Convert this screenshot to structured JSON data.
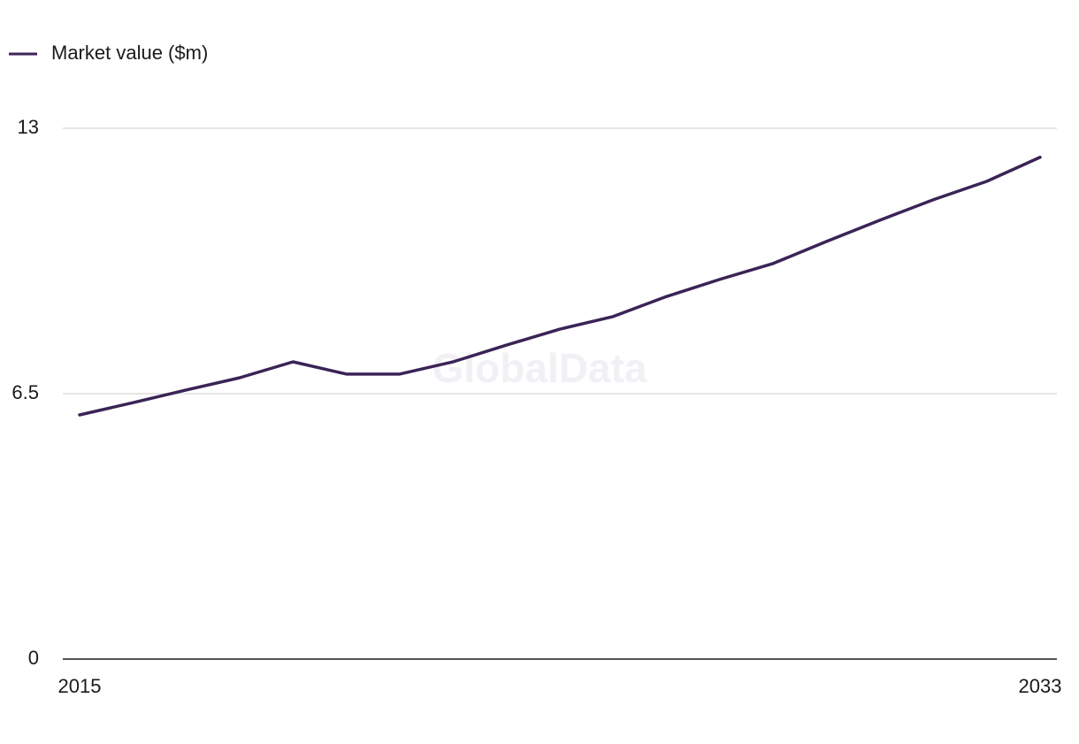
{
  "chart_data": {
    "type": "line",
    "watermark": "GlobalData",
    "categories": [
      "2015",
      null,
      null,
      null,
      null,
      null,
      null,
      null,
      null,
      null,
      null,
      null,
      null,
      null,
      null,
      null,
      null,
      null,
      "2033"
    ],
    "series": [
      {
        "name": "Market value ($m)",
        "color": "#3a2456",
        "values": [
          5.98,
          6.28,
          6.59,
          6.89,
          7.28,
          6.98,
          6.98,
          7.28,
          7.69,
          8.08,
          8.39,
          8.88,
          9.3,
          9.69,
          10.23,
          10.75,
          11.25,
          11.7,
          12.29
        ]
      }
    ],
    "ylim": [
      0,
      13
    ],
    "yticks": [
      0,
      6.5,
      13
    ],
    "grid": true,
    "legend": "top-left"
  }
}
